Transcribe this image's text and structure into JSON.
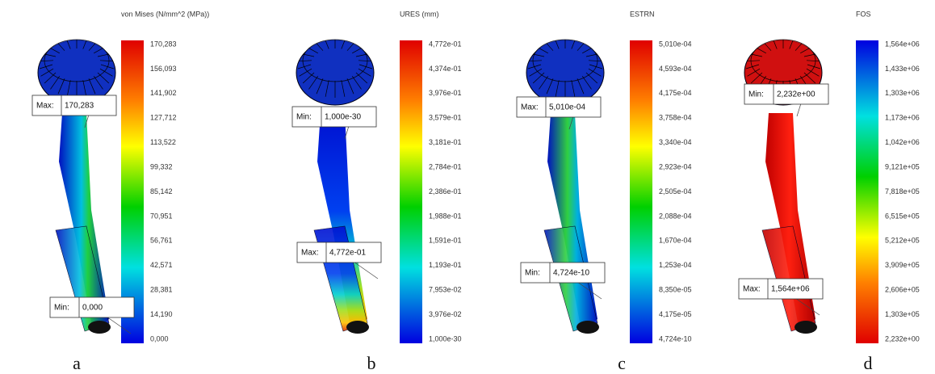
{
  "panels": [
    {
      "legend_title": "von Mises (N/mm^2 (MPa))",
      "ticks": [
        "170,283",
        "156,093",
        "141,902",
        "127,712",
        "113,522",
        "99,332",
        "85,142",
        "70,951",
        "56,761",
        "42,571",
        "28,381",
        "14,190",
        "0,000"
      ],
      "annotations": [
        {
          "label": "Max:",
          "value": "170,283"
        },
        {
          "label": "Min:",
          "value": "0,000"
        }
      ],
      "caption": "a"
    },
    {
      "legend_title": "URES (mm)",
      "ticks": [
        "4,772e-01",
        "4,374e-01",
        "3,976e-01",
        "3,579e-01",
        "3,181e-01",
        "2,784e-01",
        "2,386e-01",
        "1,988e-01",
        "1,591e-01",
        "1,193e-01",
        "7,953e-02",
        "3,976e-02",
        "1,000e-30"
      ],
      "annotations": [
        {
          "label": "Min:",
          "value": "1,000e-30"
        },
        {
          "label": "Max:",
          "value": "4,772e-01"
        }
      ],
      "caption": "b"
    },
    {
      "legend_title": "ESTRN",
      "ticks": [
        "5,010e-04",
        "4,593e-04",
        "4,175e-04",
        "3,758e-04",
        "3,340e-04",
        "2,923e-04",
        "2,505e-04",
        "2,088e-04",
        "1,670e-04",
        "1,253e-04",
        "8,350e-05",
        "4,175e-05",
        "4,724e-10"
      ],
      "annotations": [
        {
          "label": "Max:",
          "value": "5,010e-04"
        },
        {
          "label": "Min:",
          "value": "4,724e-10"
        }
      ],
      "caption": "c"
    },
    {
      "legend_title": "FOS",
      "ticks": [
        "1,564e+06",
        "1,433e+06",
        "1,303e+06",
        "1,173e+06",
        "1,042e+06",
        "9,121e+05",
        "7,818e+05",
        "6,515e+05",
        "5,212e+05",
        "3,909e+05",
        "2,606e+05",
        "1,303e+05",
        "2,232e+00"
      ],
      "annotations": [
        {
          "label": "Min:",
          "value": "2,232e+00"
        },
        {
          "label": "Max:",
          "value": "1,564e+06"
        }
      ],
      "caption": "d"
    }
  ]
}
